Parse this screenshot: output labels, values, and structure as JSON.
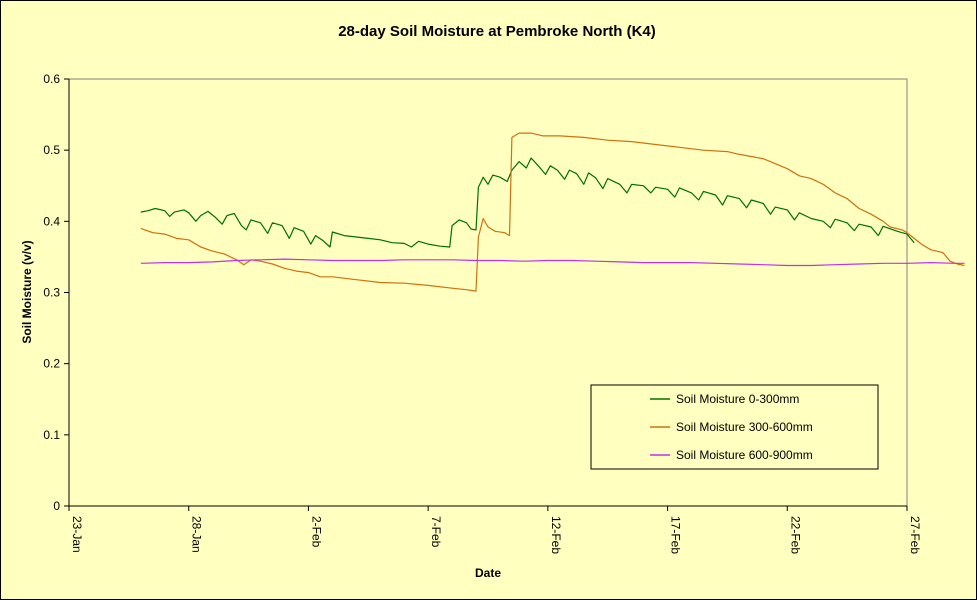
{
  "chart_data": {
    "type": "line",
    "title": "28-day Soil Moisture at Pembroke North (K4)",
    "xlabel": "Date",
    "ylabel": "Soil Moisture (v/v)",
    "ylim": [
      0,
      0.6
    ],
    "yticks": [
      0,
      0.1,
      0.2,
      0.3,
      0.4,
      0.5,
      0.6
    ],
    "ytick_labels": [
      "0",
      "0.1",
      "0.2",
      "0.3",
      "0.4",
      "0.5",
      "0.6"
    ],
    "xlim": [
      0,
      35
    ],
    "xticks": [
      0,
      5,
      10,
      15,
      20,
      25,
      30,
      35
    ],
    "xtick_labels": [
      "23-Jan",
      "28-Jan",
      "2-Feb",
      "7-Feb",
      "12-Feb",
      "17-Feb",
      "22-Feb",
      "27-Feb"
    ],
    "x_note": "x values are days after 23-Jan",
    "grid": false,
    "legend_position": "bottom-right",
    "plot_background": "#ffffc0",
    "series": [
      {
        "name": "Soil Moisture 0-300mm",
        "color": "#007000",
        "points": [
          [
            3.0,
            0.413
          ],
          [
            3.3,
            0.415
          ],
          [
            3.6,
            0.418
          ],
          [
            4.0,
            0.415
          ],
          [
            4.2,
            0.407
          ],
          [
            4.4,
            0.413
          ],
          [
            4.8,
            0.416
          ],
          [
            5.0,
            0.412
          ],
          [
            5.3,
            0.4
          ],
          [
            5.5,
            0.408
          ],
          [
            5.8,
            0.414
          ],
          [
            6.1,
            0.406
          ],
          [
            6.4,
            0.396
          ],
          [
            6.6,
            0.408
          ],
          [
            6.9,
            0.411
          ],
          [
            7.2,
            0.394
          ],
          [
            7.4,
            0.388
          ],
          [
            7.6,
            0.402
          ],
          [
            8.0,
            0.398
          ],
          [
            8.3,
            0.383
          ],
          [
            8.5,
            0.398
          ],
          [
            8.9,
            0.394
          ],
          [
            9.2,
            0.376
          ],
          [
            9.4,
            0.391
          ],
          [
            9.8,
            0.386
          ],
          [
            10.1,
            0.368
          ],
          [
            10.3,
            0.38
          ],
          [
            10.6,
            0.373
          ],
          [
            10.9,
            0.364
          ],
          [
            11.0,
            0.385
          ],
          [
            11.5,
            0.38
          ],
          [
            12.0,
            0.378
          ],
          [
            12.5,
            0.376
          ],
          [
            13.0,
            0.374
          ],
          [
            13.5,
            0.37
          ],
          [
            14.0,
            0.369
          ],
          [
            14.3,
            0.364
          ],
          [
            14.6,
            0.372
          ],
          [
            15.0,
            0.368
          ],
          [
            15.5,
            0.365
          ],
          [
            15.9,
            0.364
          ],
          [
            16.0,
            0.394
          ],
          [
            16.3,
            0.402
          ],
          [
            16.6,
            0.398
          ],
          [
            16.8,
            0.389
          ],
          [
            17.0,
            0.388
          ],
          [
            17.1,
            0.448
          ],
          [
            17.3,
            0.462
          ],
          [
            17.5,
            0.452
          ],
          [
            17.7,
            0.465
          ],
          [
            18.0,
            0.462
          ],
          [
            18.3,
            0.456
          ],
          [
            18.5,
            0.472
          ],
          [
            18.8,
            0.484
          ],
          [
            19.1,
            0.475
          ],
          [
            19.3,
            0.489
          ],
          [
            19.6,
            0.478
          ],
          [
            19.9,
            0.466
          ],
          [
            20.1,
            0.478
          ],
          [
            20.4,
            0.472
          ],
          [
            20.7,
            0.459
          ],
          [
            20.9,
            0.472
          ],
          [
            21.2,
            0.467
          ],
          [
            21.5,
            0.452
          ],
          [
            21.7,
            0.468
          ],
          [
            22.0,
            0.461
          ],
          [
            22.3,
            0.446
          ],
          [
            22.5,
            0.46
          ],
          [
            23.0,
            0.452
          ],
          [
            23.3,
            0.44
          ],
          [
            23.5,
            0.452
          ],
          [
            24.0,
            0.45
          ],
          [
            24.3,
            0.44
          ],
          [
            24.5,
            0.448
          ],
          [
            25.0,
            0.445
          ],
          [
            25.3,
            0.434
          ],
          [
            25.5,
            0.447
          ],
          [
            26.0,
            0.44
          ],
          [
            26.3,
            0.43
          ],
          [
            26.5,
            0.442
          ],
          [
            27.0,
            0.437
          ],
          [
            27.3,
            0.423
          ],
          [
            27.5,
            0.436
          ],
          [
            28.0,
            0.432
          ],
          [
            28.3,
            0.419
          ],
          [
            28.5,
            0.43
          ],
          [
            29.0,
            0.425
          ],
          [
            29.3,
            0.41
          ],
          [
            29.5,
            0.42
          ],
          [
            30.0,
            0.416
          ],
          [
            30.3,
            0.402
          ],
          [
            30.5,
            0.412
          ],
          [
            31.0,
            0.404
          ],
          [
            31.5,
            0.4
          ],
          [
            31.8,
            0.391
          ],
          [
            32.0,
            0.403
          ],
          [
            32.5,
            0.398
          ],
          [
            32.8,
            0.387
          ],
          [
            33.0,
            0.396
          ],
          [
            33.5,
            0.392
          ],
          [
            33.8,
            0.38
          ],
          [
            34.0,
            0.393
          ],
          [
            34.6,
            0.386
          ],
          [
            35.0,
            0.382
          ],
          [
            35.3,
            0.37
          ]
        ]
      },
      {
        "name": "Soil Moisture 300-600mm",
        "color": "#d07010",
        "points": [
          [
            3.0,
            0.39
          ],
          [
            3.5,
            0.384
          ],
          [
            4.0,
            0.382
          ],
          [
            4.5,
            0.376
          ],
          [
            5.0,
            0.374
          ],
          [
            5.5,
            0.364
          ],
          [
            6.0,
            0.358
          ],
          [
            6.5,
            0.354
          ],
          [
            7.0,
            0.346
          ],
          [
            7.3,
            0.339
          ],
          [
            7.6,
            0.346
          ],
          [
            8.0,
            0.344
          ],
          [
            8.5,
            0.34
          ],
          [
            9.0,
            0.334
          ],
          [
            9.5,
            0.33
          ],
          [
            10.0,
            0.328
          ],
          [
            10.5,
            0.322
          ],
          [
            11.0,
            0.322
          ],
          [
            12.0,
            0.318
          ],
          [
            13.0,
            0.314
          ],
          [
            14.0,
            0.313
          ],
          [
            15.0,
            0.31
          ],
          [
            16.0,
            0.306
          ],
          [
            16.6,
            0.304
          ],
          [
            17.0,
            0.302
          ],
          [
            17.1,
            0.378
          ],
          [
            17.3,
            0.404
          ],
          [
            17.5,
            0.392
          ],
          [
            17.8,
            0.386
          ],
          [
            18.2,
            0.384
          ],
          [
            18.4,
            0.38
          ],
          [
            18.5,
            0.518
          ],
          [
            18.8,
            0.524
          ],
          [
            19.3,
            0.524
          ],
          [
            19.8,
            0.52
          ],
          [
            20.5,
            0.52
          ],
          [
            21.5,
            0.518
          ],
          [
            22.5,
            0.514
          ],
          [
            23.5,
            0.512
          ],
          [
            24.5,
            0.508
          ],
          [
            25.5,
            0.504
          ],
          [
            26.5,
            0.5
          ],
          [
            27.5,
            0.498
          ],
          [
            28.0,
            0.494
          ],
          [
            29.0,
            0.488
          ],
          [
            30.0,
            0.474
          ],
          [
            30.5,
            0.464
          ],
          [
            31.0,
            0.46
          ],
          [
            31.5,
            0.452
          ],
          [
            32.0,
            0.44
          ],
          [
            32.5,
            0.432
          ],
          [
            33.0,
            0.418
          ],
          [
            33.5,
            0.41
          ],
          [
            34.0,
            0.4
          ],
          [
            34.3,
            0.392
          ],
          [
            34.8,
            0.388
          ],
          [
            35.0,
            0.384
          ],
          [
            35.3,
            0.376
          ],
          [
            35.6,
            0.368
          ],
          [
            36.0,
            0.36
          ],
          [
            36.5,
            0.356
          ],
          [
            36.8,
            0.344
          ],
          [
            37.1,
            0.34
          ],
          [
            37.4,
            0.338
          ]
        ]
      },
      {
        "name": "Soil Moisture 600-900mm",
        "color": "#c030f0",
        "points": [
          [
            3.0,
            0.341
          ],
          [
            4.0,
            0.342
          ],
          [
            5.0,
            0.342
          ],
          [
            6.0,
            0.343
          ],
          [
            7.0,
            0.345
          ],
          [
            8.0,
            0.346
          ],
          [
            9.0,
            0.347
          ],
          [
            10.0,
            0.346
          ],
          [
            11.0,
            0.345
          ],
          [
            12.0,
            0.345
          ],
          [
            13.0,
            0.345
          ],
          [
            14.0,
            0.346
          ],
          [
            15.0,
            0.346
          ],
          [
            16.0,
            0.346
          ],
          [
            17.0,
            0.345
          ],
          [
            18.0,
            0.345
          ],
          [
            19.0,
            0.344
          ],
          [
            20.0,
            0.345
          ],
          [
            21.0,
            0.345
          ],
          [
            22.0,
            0.344
          ],
          [
            23.0,
            0.343
          ],
          [
            24.0,
            0.342
          ],
          [
            25.0,
            0.342
          ],
          [
            26.0,
            0.342
          ],
          [
            27.0,
            0.341
          ],
          [
            28.0,
            0.34
          ],
          [
            29.0,
            0.339
          ],
          [
            30.0,
            0.338
          ],
          [
            31.0,
            0.338
          ],
          [
            32.0,
            0.339
          ],
          [
            33.0,
            0.34
          ],
          [
            34.0,
            0.341
          ],
          [
            35.0,
            0.341
          ],
          [
            36.0,
            0.342
          ],
          [
            37.0,
            0.341
          ],
          [
            37.4,
            0.341
          ]
        ]
      }
    ]
  }
}
